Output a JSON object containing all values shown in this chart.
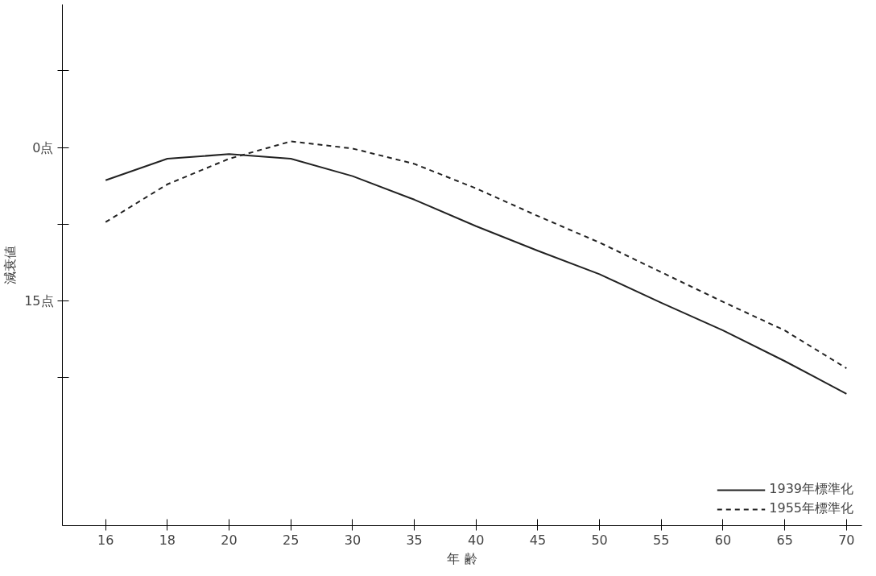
{
  "chart_data": {
    "type": "line",
    "xlabel": "年 齢",
    "ylabel": "減衰値",
    "categories": [
      "16",
      "18",
      "20",
      "25",
      "30",
      "35",
      "40",
      "45",
      "50",
      "55",
      "60",
      "65",
      "70"
    ],
    "series": [
      {
        "name": "1939年標準化",
        "color": "#222222",
        "line_style": "solid",
        "values": [
          3.2,
          1.1,
          0.65,
          1.1,
          2.8,
          5.1,
          7.7,
          10.1,
          12.4,
          15.2,
          17.9,
          20.9,
          24.1
        ]
      },
      {
        "name": "1955年標準化",
        "color": "#222222",
        "line_style": "dashed",
        "values": [
          7.3,
          3.6,
          1.1,
          -0.6,
          0.1,
          1.6,
          4.0,
          6.7,
          9.3,
          12.2,
          15.1,
          17.9,
          21.6
        ]
      }
    ],
    "ylim": [
      37,
      -14
    ],
    "yticks": [
      {
        "value": -7.5,
        "label": null
      },
      {
        "value": 0,
        "label": "0点"
      },
      {
        "value": 7.5,
        "label": null
      },
      {
        "value": 15,
        "label": "15点"
      },
      {
        "value": 22.5,
        "label": null
      }
    ],
    "grid": false,
    "legend": "bottom right",
    "marker": "none"
  }
}
